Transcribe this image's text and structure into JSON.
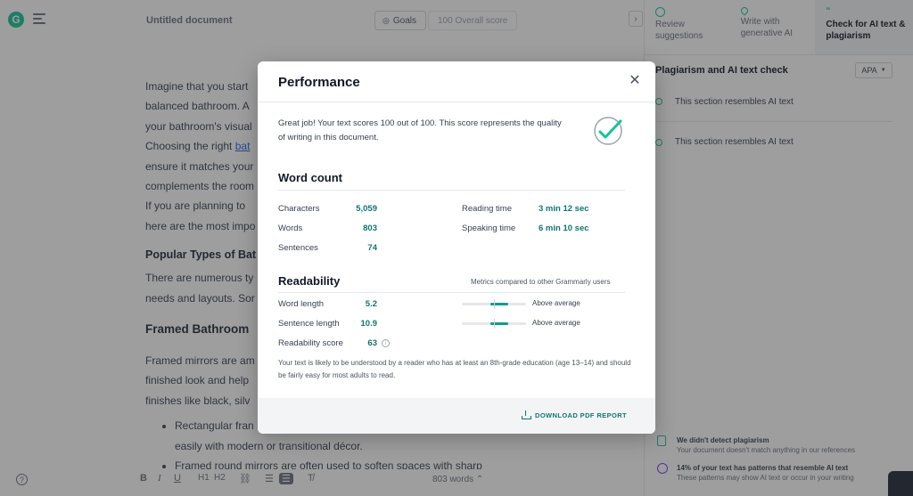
{
  "app": {
    "logo_letter": "G",
    "document_title": "Untitled document",
    "goals_label": "Goals",
    "overall_score_label": "100 Overall score",
    "collapse_glyph": "›"
  },
  "editor": {
    "lines": [
      "Imagine that you start",
      "balanced bathroom. A",
      "your bathroom's visual",
      "ensure it matches your",
      "complements the room",
      "If you are planning to",
      "here are the most impo"
    ],
    "choosing_prefix": "Choosing the right ",
    "choosing_link": "bat",
    "heading_popular": "Popular Types of Bat",
    "numerous_lines": [
      "There are numerous ty",
      "needs and layouts. Sor"
    ],
    "heading_framed": "Framed Bathroom",
    "framed_lines": [
      "Framed mirrors are am",
      "finished look and help",
      "finishes like black, silv"
    ],
    "bullet_1_line_1": "Rectangular fran",
    "bullet_1_line_2": "easily with modern or transitional décor.",
    "bullet_2": "Framed round mirrors are often used to soften spaces with sharp"
  },
  "toolbar": {
    "help": "?",
    "bold": "B",
    "italic": "I",
    "underline": "U",
    "h1": "H1",
    "h2": "H2",
    "link": "⛓",
    "ordered_list": "☰",
    "bullet_list": "☰",
    "clear": "T̸",
    "word_count": "803 words"
  },
  "right_panel": {
    "tabs": [
      {
        "label": "Review suggestions"
      },
      {
        "label": "Write with generative AI"
      },
      {
        "label": "Check for AI text & plagiarism"
      }
    ],
    "header": "Plagiarism and AI text check",
    "style_select": "APA",
    "items": [
      {
        "label": "This section resembles AI text"
      },
      {
        "label": "This section resembles AI text"
      }
    ],
    "summary_plagiarism_title": "We didn't detect plagiarism",
    "summary_plagiarism_text": "Your document doesn't match anything in our references",
    "summary_ai_title": "14% of your text has patterns that resemble AI text",
    "summary_ai_text": "These patterns may show AI text or occur in your writing"
  },
  "modal": {
    "title": "Performance",
    "summary": "Great job! Your text scores 100 out of 100. This score represents the quality of writing in this document.",
    "word_count_heading": "Word count",
    "stats": {
      "characters_label": "Characters",
      "characters_value": "5,059",
      "words_label": "Words",
      "words_value": "803",
      "sentences_label": "Sentences",
      "sentences_value": "74",
      "reading_time_label": "Reading time",
      "reading_time_value": "3 min 12 sec",
      "speaking_time_label": "Speaking time",
      "speaking_time_value": "6 min 10 sec"
    },
    "readability_heading": "Readability",
    "metrics_note": "Metrics compared to other Grammarly users",
    "readability": {
      "word_length_label": "Word length",
      "word_length_value": "5.2",
      "word_length_rating": "Above average",
      "word_length_fill_start": 0.45,
      "word_length_fill_end": 0.72,
      "sentence_length_label": "Sentence length",
      "sentence_length_value": "10.9",
      "sentence_length_rating": "Above average",
      "sentence_length_fill_start": 0.45,
      "sentence_length_fill_end": 0.72,
      "score_label": "Readability score",
      "score_value": "63"
    },
    "explanation": "Your text is likely to be understood by a reader who has at least an 8th-grade education (age 13–14) and should be fairly easy for most adults to read.",
    "download_label": "DOWNLOAD PDF REPORT"
  },
  "colors": {
    "accent": "#15c39a",
    "value_teal": "#0f766e",
    "bar_fill": "#0f9d8a",
    "ai_purple": "#7c3aed"
  }
}
